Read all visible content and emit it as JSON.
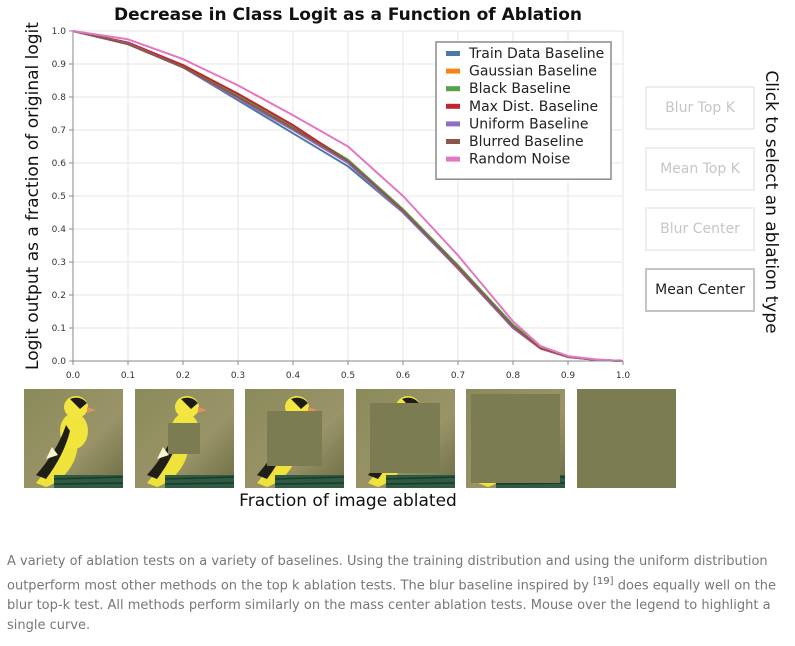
{
  "chart_data": {
    "type": "line",
    "title": "Decrease in Class Logit as a Function of Ablation",
    "xlabel": "",
    "ylabel": "Logit output as a fraction of original logit",
    "xlim": [
      0,
      1
    ],
    "ylim": [
      0,
      1
    ],
    "xticks": [
      "0.0",
      "0.1",
      "0.2",
      "0.3",
      "0.4",
      "0.5",
      "0.6",
      "0.7",
      "0.8",
      "0.9",
      "1.0"
    ],
    "yticks": [
      "0.0",
      "0.1",
      "0.2",
      "0.3",
      "0.4",
      "0.5",
      "0.6",
      "0.7",
      "0.8",
      "0.9",
      "1.0"
    ],
    "grid": true,
    "legend_position": "top-right",
    "x": [
      0.0,
      0.1,
      0.2,
      0.3,
      0.4,
      0.5,
      0.6,
      0.7,
      0.8,
      0.85,
      0.9,
      0.95,
      1.0
    ],
    "series": [
      {
        "name": "Train Data Baseline",
        "color": "#4c78a8",
        "values": [
          1.0,
          0.96,
          0.89,
          0.79,
          0.69,
          0.59,
          0.45,
          0.28,
          0.1,
          0.04,
          0.012,
          0.004,
          0.0
        ]
      },
      {
        "name": "Gaussian Baseline",
        "color": "#f58518",
        "values": [
          1.0,
          0.965,
          0.895,
          0.8,
          0.705,
          0.605,
          0.455,
          0.285,
          0.105,
          0.04,
          0.013,
          0.004,
          0.0
        ]
      },
      {
        "name": "Black Baseline",
        "color": "#54a24b",
        "values": [
          1.0,
          0.965,
          0.895,
          0.805,
          0.71,
          0.61,
          0.46,
          0.29,
          0.11,
          0.043,
          0.014,
          0.004,
          0.0
        ]
      },
      {
        "name": "Max Dist. Baseline",
        "color": "#c2262d",
        "values": [
          1.0,
          0.965,
          0.897,
          0.81,
          0.715,
          0.605,
          0.455,
          0.28,
          0.1,
          0.038,
          0.012,
          0.004,
          0.0
        ]
      },
      {
        "name": "Uniform Baseline",
        "color": "#8e6fc0",
        "values": [
          1.0,
          0.962,
          0.89,
          0.795,
          0.7,
          0.6,
          0.45,
          0.282,
          0.1,
          0.04,
          0.012,
          0.004,
          0.0
        ]
      },
      {
        "name": "Blurred Baseline",
        "color": "#8c564b",
        "values": [
          1.0,
          0.96,
          0.89,
          0.8,
          0.705,
          0.605,
          0.455,
          0.285,
          0.105,
          0.04,
          0.013,
          0.004,
          0.0
        ]
      },
      {
        "name": "Random Noise",
        "color": "#e377c2",
        "values": [
          1.0,
          0.975,
          0.915,
          0.835,
          0.745,
          0.65,
          0.5,
          0.32,
          0.12,
          0.045,
          0.015,
          0.005,
          0.0
        ]
      }
    ]
  },
  "thumbnails": {
    "xlabel": "Fraction of image ablated",
    "patch_color": "#7c7c52",
    "ablation_fractions": [
      0,
      0.1,
      0.3,
      0.5,
      0.8,
      1.0
    ]
  },
  "ablation_selector": {
    "label": "Click to select an ablation type",
    "selected": "Mean Center",
    "buttons": [
      "Blur Top K",
      "Mean Top K",
      "Blur Center",
      "Mean Center"
    ]
  },
  "caption": {
    "text_before": "A variety of ablation tests on a variety of baselines. Using the training distribution and using the uniform distribution outperform most other methods on the top k ablation tests. The blur baseline inspired by ",
    "citation": "[19]",
    "text_after": " does equally well on the blur top-k test. All methods perform similarly on the mass center ablation tests. Mouse over the legend to highlight a single curve."
  }
}
